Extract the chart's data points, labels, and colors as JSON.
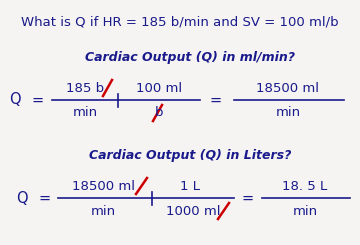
{
  "bg_color": "#f5f4f2",
  "text_color": "#1a1a8c",
  "cancel_color": "#cc0000",
  "title_line1": "What is Q if HR = 185 b/min and SV = 100 ml/b",
  "section1_title": "Cardiac Output (Q) in ml/min?",
  "section2_title": "Cardiac Output (Q) in Liters?",
  "figsize": [
    3.6,
    2.45
  ],
  "dpi": 100
}
